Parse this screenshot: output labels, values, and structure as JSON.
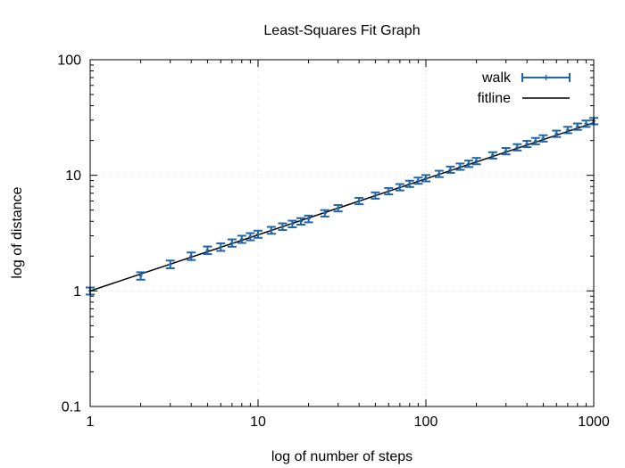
{
  "chart_data": {
    "type": "line",
    "title": "Least-Squares Fit Graph",
    "xlabel": "log of number of steps",
    "ylabel": "log of distance",
    "x_scale": "log",
    "y_scale": "log",
    "xlim": [
      1,
      1000
    ],
    "ylim": [
      0.1,
      100
    ],
    "x_ticks": [
      {
        "value": 1,
        "label": "1"
      },
      {
        "value": 10,
        "label": "10"
      },
      {
        "value": 100,
        "label": "100"
      },
      {
        "value": 1000,
        "label": "1000"
      }
    ],
    "y_ticks": [
      {
        "value": 0.1,
        "label": "0.1"
      },
      {
        "value": 1,
        "label": "1"
      },
      {
        "value": 10,
        "label": "10"
      },
      {
        "value": 100,
        "label": "100"
      }
    ],
    "grid": true,
    "legend_position": "top-right",
    "series": [
      {
        "name": "walk",
        "kind": "errorbars",
        "color": "#1f65a8",
        "points": [
          {
            "x": 1,
            "y": 1.0,
            "err": 0.07
          },
          {
            "x": 2,
            "y": 1.35,
            "err": 0.1
          },
          {
            "x": 3,
            "y": 1.7,
            "err": 0.13
          },
          {
            "x": 4,
            "y": 2.0,
            "err": 0.15
          },
          {
            "x": 5,
            "y": 2.25,
            "err": 0.17
          },
          {
            "x": 6,
            "y": 2.4,
            "err": 0.18
          },
          {
            "x": 7,
            "y": 2.6,
            "err": 0.19
          },
          {
            "x": 8,
            "y": 2.8,
            "err": 0.2
          },
          {
            "x": 9,
            "y": 2.95,
            "err": 0.21
          },
          {
            "x": 10,
            "y": 3.1,
            "err": 0.22
          },
          {
            "x": 12,
            "y": 3.35,
            "err": 0.23
          },
          {
            "x": 14,
            "y": 3.6,
            "err": 0.24
          },
          {
            "x": 16,
            "y": 3.8,
            "err": 0.25
          },
          {
            "x": 18,
            "y": 4.0,
            "err": 0.26
          },
          {
            "x": 20,
            "y": 4.2,
            "err": 0.28
          },
          {
            "x": 25,
            "y": 4.7,
            "err": 0.3
          },
          {
            "x": 30,
            "y": 5.2,
            "err": 0.33
          },
          {
            "x": 40,
            "y": 6.0,
            "err": 0.38
          },
          {
            "x": 50,
            "y": 6.7,
            "err": 0.42
          },
          {
            "x": 60,
            "y": 7.3,
            "err": 0.46
          },
          {
            "x": 70,
            "y": 7.9,
            "err": 0.5
          },
          {
            "x": 80,
            "y": 8.45,
            "err": 0.53
          },
          {
            "x": 90,
            "y": 9.0,
            "err": 0.56
          },
          {
            "x": 100,
            "y": 9.45,
            "err": 0.6
          },
          {
            "x": 120,
            "y": 10.3,
            "err": 0.65
          },
          {
            "x": 140,
            "y": 11.2,
            "err": 0.7
          },
          {
            "x": 160,
            "y": 11.9,
            "err": 0.75
          },
          {
            "x": 180,
            "y": 12.6,
            "err": 0.8
          },
          {
            "x": 200,
            "y": 13.3,
            "err": 0.84
          },
          {
            "x": 250,
            "y": 14.9,
            "err": 0.94
          },
          {
            "x": 300,
            "y": 16.2,
            "err": 1.03
          },
          {
            "x": 350,
            "y": 17.5,
            "err": 1.1
          },
          {
            "x": 400,
            "y": 18.7,
            "err": 1.18
          },
          {
            "x": 450,
            "y": 19.8,
            "err": 1.25
          },
          {
            "x": 500,
            "y": 20.9,
            "err": 1.32
          },
          {
            "x": 600,
            "y": 22.9,
            "err": 1.45
          },
          {
            "x": 700,
            "y": 24.7,
            "err": 1.56
          },
          {
            "x": 800,
            "y": 26.4,
            "err": 1.67
          },
          {
            "x": 900,
            "y": 28.0,
            "err": 1.77
          },
          {
            "x": 1000,
            "y": 29.5,
            "err": 1.87
          }
        ]
      },
      {
        "name": "fitline",
        "kind": "line",
        "color": "#000000",
        "points": [
          {
            "x": 1,
            "y": 1.0
          },
          {
            "x": 1000,
            "y": 28.5
          }
        ]
      }
    ]
  }
}
